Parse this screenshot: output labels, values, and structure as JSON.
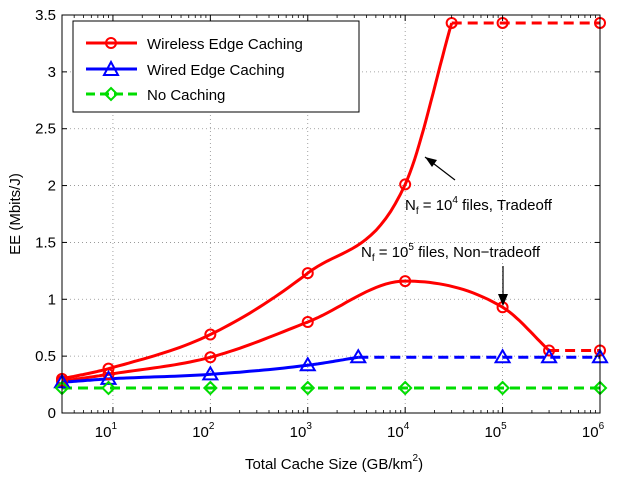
{
  "chart_data": {
    "type": "line",
    "xlabel": "Total Cache Size (GB/km",
    "xlabel_sup": "2",
    "xlabel_close": ")",
    "ylabel": "EE (Mbits/J)",
    "x_scale": "log",
    "xlim": [
      3,
      1000000
    ],
    "ylim": [
      0,
      3.5
    ],
    "grid": true,
    "legend_position": "top-left",
    "x_ticks": [
      {
        "value": 10,
        "base": "10",
        "exp": "1"
      },
      {
        "value": 100,
        "base": "10",
        "exp": "2"
      },
      {
        "value": 1000,
        "base": "10",
        "exp": "3"
      },
      {
        "value": 10000,
        "base": "10",
        "exp": "4"
      },
      {
        "value": 100000,
        "base": "10",
        "exp": "5"
      },
      {
        "value": 1000000,
        "base": "10",
        "exp": "6"
      }
    ],
    "y_ticks": [
      "0",
      "0.5",
      "1",
      "1.5",
      "2",
      "2.5",
      "3",
      "3.5"
    ],
    "series": [
      {
        "name": "Wireless Edge Caching",
        "color": "#ff0000",
        "marker": "circle",
        "curves": [
          {
            "x": [
              3,
              9,
              100,
              1000,
              10000,
              30000,
              100000,
              1000000
            ],
            "y": [
              0.3,
              0.39,
              0.69,
              1.23,
              2.01,
              3.43,
              3.43,
              3.43
            ],
            "dashed_from_index": 5
          },
          {
            "x": [
              3,
              9,
              100,
              1000,
              10000,
              100000,
              300000,
              1000000
            ],
            "y": [
              0.28,
              0.34,
              0.49,
              0.8,
              1.16,
              0.93,
              0.55,
              0.55
            ],
            "dashed_from_index": 6
          }
        ]
      },
      {
        "name": "Wired Edge Caching",
        "color": "#0000ff",
        "marker": "triangle",
        "curves": [
          {
            "x": [
              3,
              9,
              100,
              1000,
              3300,
              100000,
              300000,
              1000000
            ],
            "y": [
              0.27,
              0.3,
              0.34,
              0.42,
              0.49,
              0.49,
              0.49,
              0.49
            ],
            "dashed_from_index": 4
          }
        ]
      },
      {
        "name": "No Caching",
        "color": "#00dd00",
        "marker": "diamond",
        "curves": [
          {
            "x": [
              3,
              9,
              100,
              1000,
              10000,
              100000,
              1000000
            ],
            "y": [
              0.22,
              0.22,
              0.22,
              0.22,
              0.22,
              0.22,
              0.22
            ],
            "dashed_from_index": 0
          }
        ]
      }
    ],
    "annotations": [
      {
        "prefix": "N",
        "sub": "f",
        "mid": " = 10",
        "sup": "4",
        "suffix": " files, Tradeoff"
      },
      {
        "prefix": "N",
        "sub": "f",
        "mid": " = 10",
        "sup": "5",
        "suffix": " files, Non−tradeoff"
      }
    ]
  }
}
